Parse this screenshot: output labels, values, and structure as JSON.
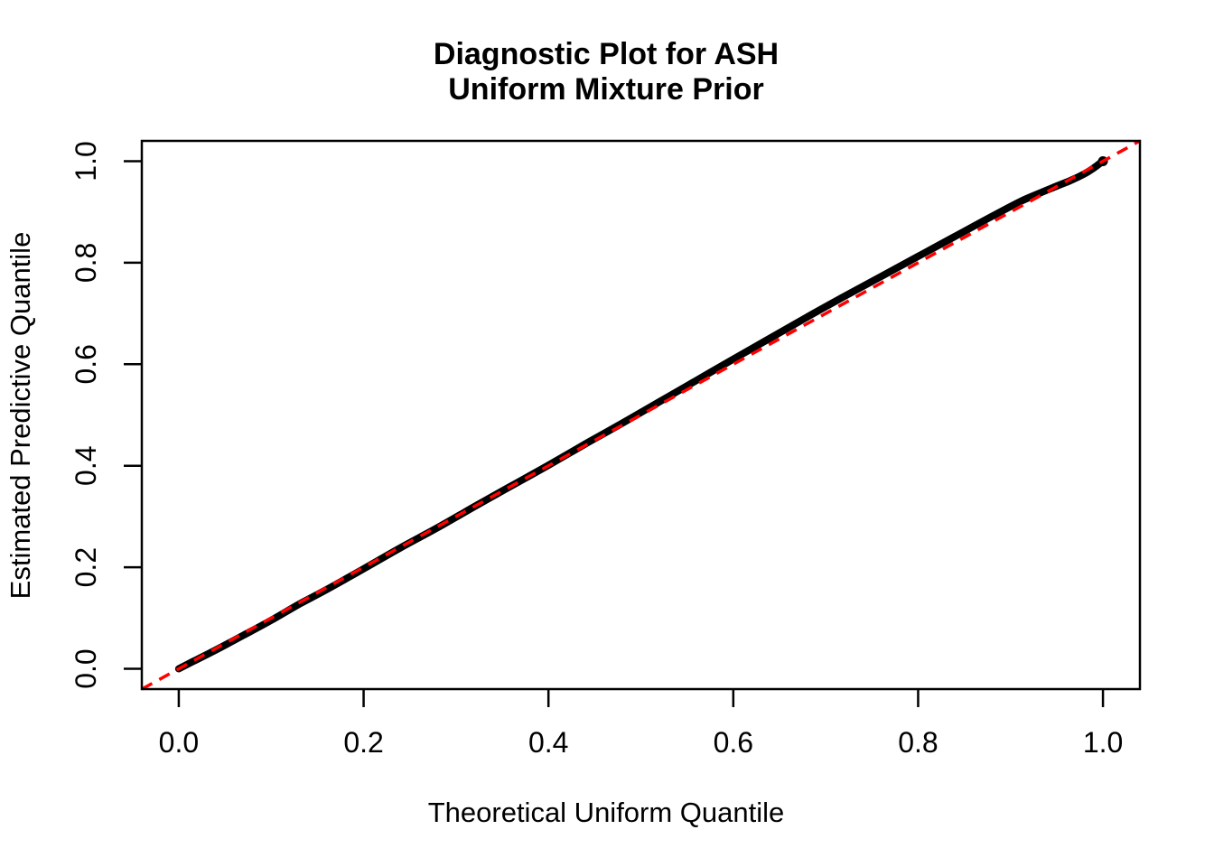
{
  "title": {
    "line1": "Diagnostic Plot for ASH",
    "line2": "Uniform Mixture Prior"
  },
  "chart_data": {
    "type": "line",
    "title": "Diagnostic Plot for ASH Uniform Mixture Prior",
    "title_lines": [
      "Diagnostic Plot for ASH",
      "Uniform Mixture Prior"
    ],
    "xlabel": "Theoretical Uniform Quantile",
    "ylabel": "Estimated Predictive Quantile",
    "xlim": [
      -0.04,
      1.04
    ],
    "ylim": [
      -0.04,
      1.04
    ],
    "x_ticks": [
      0.0,
      0.2,
      0.4,
      0.6,
      0.8,
      1.0
    ],
    "y_ticks": [
      0.0,
      0.2,
      0.4,
      0.6,
      0.8,
      1.0
    ],
    "x_tick_labels": [
      "0.0",
      "0.2",
      "0.4",
      "0.6",
      "0.8",
      "1.0"
    ],
    "y_tick_labels": [
      "0.0",
      "0.2",
      "0.4",
      "0.6",
      "0.8",
      "1.0"
    ],
    "grid": false,
    "legend": "none",
    "background": "#ffffff",
    "axis_color": "#000000",
    "series": [
      {
        "name": "estimated_predictive_quantiles",
        "type": "line",
        "color": "#000000",
        "line_width": 8,
        "x": [
          0.0,
          0.015,
          0.04,
          0.07,
          0.1,
          0.13,
          0.16,
          0.2,
          0.24,
          0.28,
          0.32,
          0.36,
          0.4,
          0.44,
          0.48,
          0.52,
          0.56,
          0.6,
          0.64,
          0.68,
          0.72,
          0.76,
          0.8,
          0.84,
          0.88,
          0.91,
          0.93,
          0.95,
          0.965,
          0.98,
          0.99,
          0.997,
          1.0
        ],
        "y": [
          0.0,
          0.014,
          0.037,
          0.066,
          0.0955,
          0.127,
          0.156,
          0.197,
          0.2385,
          0.278,
          0.3195,
          0.3605,
          0.401,
          0.443,
          0.484,
          0.526,
          0.568,
          0.61,
          0.6515,
          0.693,
          0.7335,
          0.773,
          0.8125,
          0.852,
          0.8915,
          0.92,
          0.936,
          0.951,
          0.962,
          0.975,
          0.9865,
          0.996,
          1.0
        ]
      },
      {
        "name": "reference_line_y_equals_x",
        "type": "abline",
        "intercept": 0,
        "slope": 1,
        "color": "#FF0000",
        "line_style": "dashed",
        "line_width": 3.5,
        "dash_pattern": [
          13,
          9
        ]
      }
    ]
  }
}
